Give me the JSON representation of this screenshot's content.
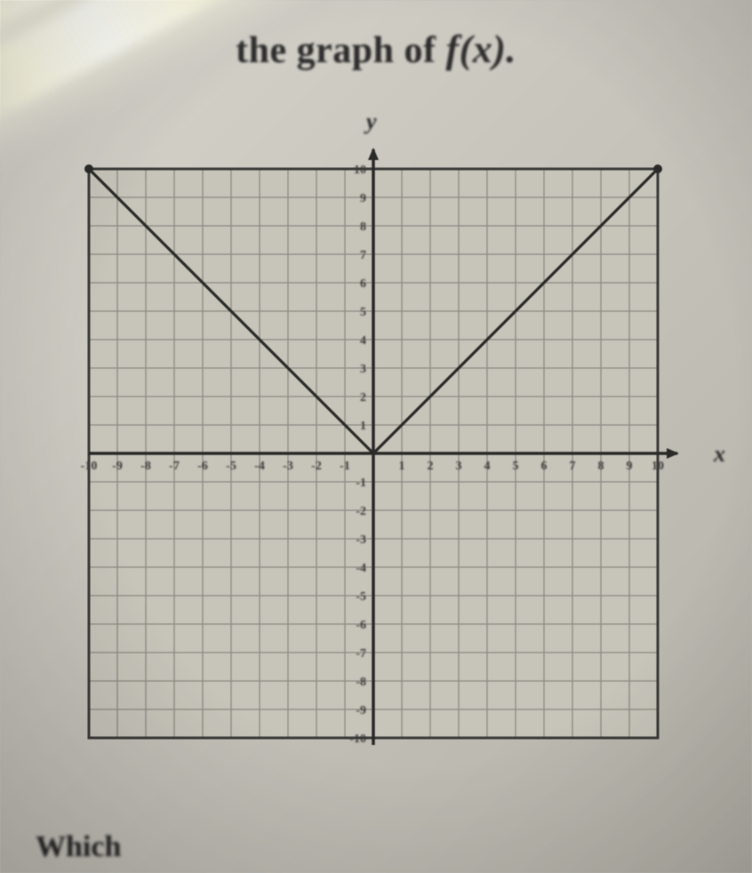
{
  "title_prefix": "the graph of ",
  "title_fx": "f(x).",
  "axis_label_y": "y",
  "axis_label_x": "x",
  "bottom_cut_text": "Which",
  "chart": {
    "type": "line",
    "xlim": [
      -10,
      10
    ],
    "ylim": [
      -10,
      10
    ],
    "xtick_step": 1,
    "ytick_step": 1,
    "x_ticks": [
      -10,
      -9,
      -8,
      -7,
      -6,
      -5,
      -4,
      -3,
      -2,
      -1,
      1,
      2,
      3,
      4,
      5,
      6,
      7,
      8,
      9,
      10
    ],
    "y_ticks": [
      1,
      2,
      3,
      4,
      5,
      6,
      7,
      8,
      9,
      10,
      -1,
      -2,
      -3,
      -4,
      -5,
      -6,
      -7,
      -8,
      -9,
      -10
    ],
    "grid_color": "#8d8a82",
    "grid_stroke": 1.3,
    "outer_border_color": "#3a3a38",
    "outer_border_stroke": 3,
    "background_color": "#c7c4ba",
    "axis_color": "#2a2a28",
    "axis_stroke": 3.5,
    "tick_label_color": "#3a3a38",
    "tick_label_fontsize": 14,
    "series": [
      {
        "points": [
          [
            -10,
            10
          ],
          [
            0,
            0
          ]
        ],
        "color": "#2a2a28",
        "width": 3.2
      },
      {
        "points": [
          [
            0,
            0
          ],
          [
            10,
            10
          ]
        ],
        "color": "#2a2a28",
        "width": 3.2
      }
    ],
    "endpoint_fill": "#2a2a28",
    "endpoint_radius": 5
  }
}
